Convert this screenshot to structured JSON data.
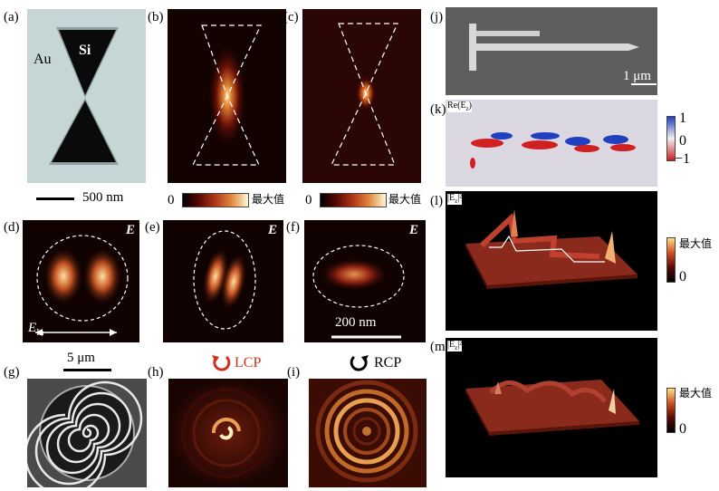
{
  "labels": {
    "a": "(a)",
    "b": "(b)",
    "c": "(c)",
    "d": "(d)",
    "e": "(e)",
    "f": "(f)",
    "g": "(g)",
    "h": "(h)",
    "i": "(i)",
    "j": "(j)",
    "k": "(k)",
    "l": "(l)",
    "m": "(m)"
  },
  "panel_a": {
    "au": "Au",
    "si": "Si",
    "scale": "500 nm"
  },
  "colorbar_bc": {
    "min": "0",
    "max": "最大值"
  },
  "panel_def": {
    "e_symbol": "E",
    "e_in": "E",
    "e_in_sub": "In",
    "scale": "200 nm"
  },
  "panel_g": {
    "scale": "5 μm"
  },
  "panel_h": {
    "pol": "LCP"
  },
  "panel_i": {
    "pol": "RCP"
  },
  "panel_j": {
    "scale": "1 μm"
  },
  "panel_k": {
    "title": "Re(E",
    "title_sub": "z",
    "title_end": ")",
    "max": "1",
    "mid": "0",
    "min": "−1"
  },
  "panel_l": {
    "title": "|E",
    "title_sub": "z",
    "title_end": "|²",
    "max": "最大值",
    "min": "0"
  },
  "panel_m": {
    "title": "|E",
    "title_sub": "z",
    "title_end": "|²",
    "max": "最大值",
    "min": "0"
  },
  "colors": {
    "hot_dark": "#1a0300",
    "hot_mid": "#c0401a",
    "hot_bright": "#ffe6a0",
    "blue": "#2040c0",
    "red": "#d02020"
  }
}
